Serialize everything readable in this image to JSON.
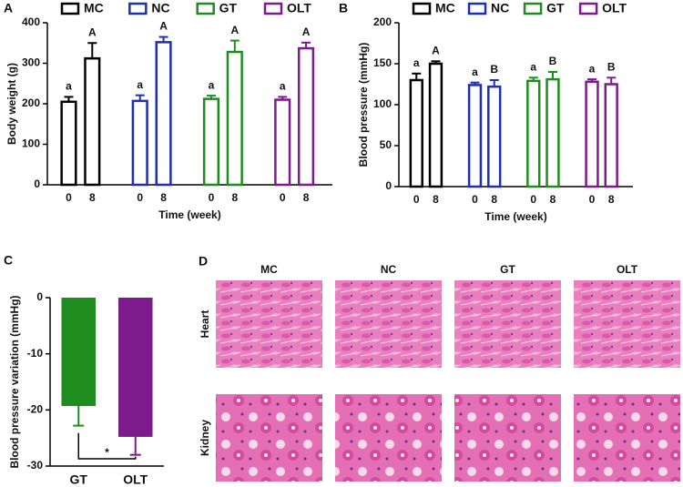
{
  "chart_data": [
    {
      "type": "bar",
      "panel": "A",
      "ylabel": "Body weight (g)",
      "xlabel": "Time (week)",
      "ylim": [
        0,
        400
      ],
      "yticks": [
        0,
        100,
        200,
        300,
        400
      ],
      "bar_fill": "#ffffff",
      "series": [
        {
          "name": "MC",
          "color": "#000000",
          "categories": [
            "0",
            "8"
          ],
          "values": [
            205,
            312
          ],
          "errors": [
            12,
            38
          ],
          "letters": [
            "a",
            "A"
          ]
        },
        {
          "name": "NC",
          "color": "#1f2fb0",
          "categories": [
            "0",
            "8"
          ],
          "values": [
            207,
            352
          ],
          "errors": [
            14,
            13
          ],
          "letters": [
            "a",
            "A"
          ]
        },
        {
          "name": "GT",
          "color": "#1e8c1e",
          "categories": [
            "0",
            "8"
          ],
          "values": [
            212,
            328
          ],
          "errors": [
            8,
            28
          ],
          "letters": [
            "a",
            "A"
          ]
        },
        {
          "name": "OLT",
          "color": "#7d1a8c",
          "categories": [
            "0",
            "8"
          ],
          "values": [
            210,
            337
          ],
          "errors": [
            7,
            14
          ],
          "letters": [
            "a",
            "A"
          ]
        }
      ]
    },
    {
      "type": "bar",
      "panel": "B",
      "ylabel": "Blood pressure (mmHg)",
      "xlabel": "Time (week)",
      "ylim": [
        0,
        200
      ],
      "yticks": [
        0,
        50,
        100,
        150,
        200
      ],
      "bar_fill": "#ffffff",
      "series": [
        {
          "name": "MC",
          "color": "#000000",
          "categories": [
            "0",
            "8"
          ],
          "values": [
            130,
            150
          ],
          "errors": [
            8,
            3
          ],
          "letters": [
            "a",
            "A"
          ]
        },
        {
          "name": "NC",
          "color": "#1f2fb0",
          "categories": [
            "0",
            "8"
          ],
          "values": [
            124,
            122
          ],
          "errors": [
            3,
            8
          ],
          "letters": [
            "a",
            "B"
          ]
        },
        {
          "name": "GT",
          "color": "#1e8c1e",
          "categories": [
            "0",
            "8"
          ],
          "values": [
            129,
            131
          ],
          "errors": [
            4,
            9
          ],
          "letters": [
            "a",
            "B"
          ]
        },
        {
          "name": "OLT",
          "color": "#7d1a8c",
          "categories": [
            "0",
            "8"
          ],
          "values": [
            128,
            125
          ],
          "errors": [
            3,
            8
          ],
          "letters": [
            "a",
            "B"
          ]
        }
      ]
    },
    {
      "type": "bar",
      "panel": "C",
      "ylabel": "Blood pressure variation (mmHg)",
      "ylim": [
        -30,
        0
      ],
      "yticks": [
        0,
        -10,
        -20,
        -30
      ],
      "categories": [
        "GT",
        "OLT"
      ],
      "values": [
        -19.3,
        -24.8
      ],
      "errors": [
        3.5,
        3.2
      ],
      "colors": [
        "#1e8c1e",
        "#7d1a8c"
      ],
      "significance": "*"
    }
  ],
  "panel_d": {
    "label": "D",
    "columns": [
      "MC",
      "NC",
      "GT",
      "OLT"
    ],
    "rows": [
      "Heart",
      "Kidney"
    ]
  }
}
